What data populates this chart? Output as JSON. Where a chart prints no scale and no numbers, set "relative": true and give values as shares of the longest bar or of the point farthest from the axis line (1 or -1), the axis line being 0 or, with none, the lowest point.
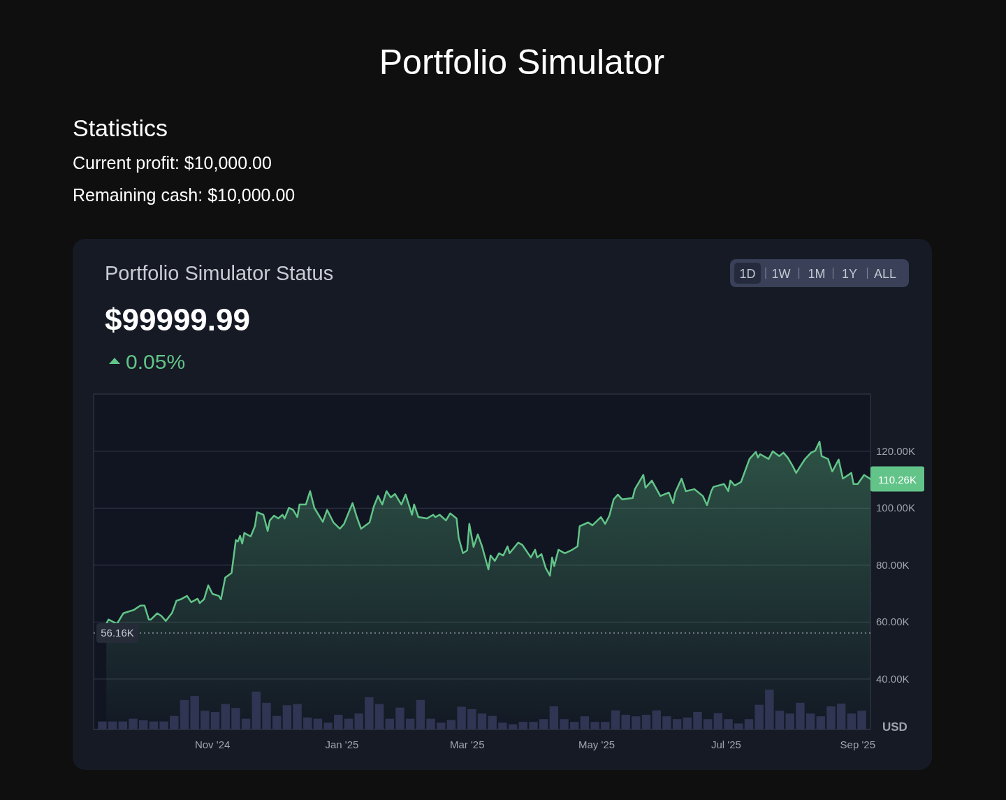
{
  "chart_data": [
    {
      "type": "other",
      "title": "Portfolio Simulator",
      "subtitle": "Statistics",
      "annotations": [
        "Current profit: $10,000.00",
        "Remaining cash: $10,000.00"
      ]
    },
    {
      "type": "area",
      "title": "Portfolio Simulator Status",
      "subtitle": "$99999.99",
      "ylabel": "USD",
      "color": "#62c488",
      "grid": "y",
      "annotations": [
        "0.05%",
        "1D",
        "1W",
        "1M",
        "1Y",
        "ALL",
        {
          "text": "110.26K",
          "x": "2025-09-07",
          "y": 110260
        }
      ],
      "ref_lines": [
        {
          "axis": "y",
          "value": 56160,
          "label": "56.16K",
          "line_style": "dotted",
          "color": "#8a8f9c"
        }
      ],
      "xlim": [
        "2024-09-06",
        "2025-09-07"
      ],
      "xticks": [
        {
          "value": "2024-11-01",
          "label": "Nov '24"
        },
        {
          "value": "2025-01-01",
          "label": "Jan '25"
        },
        {
          "value": "2025-03-01",
          "label": "Mar '25"
        },
        {
          "value": "2025-05-01",
          "label": "May '25"
        },
        {
          "value": "2025-07-01",
          "label": "Jul '25"
        },
        {
          "value": "2025-09-01",
          "label": "Sep '25"
        }
      ],
      "ylim": [
        22300,
        140100
      ],
      "yticks": [
        {
          "value": 40000,
          "label": "40.00K"
        },
        {
          "value": 60000,
          "label": "60.00K"
        },
        {
          "value": 80000,
          "label": "80.00K"
        },
        {
          "value": 100000,
          "label": "100.00K"
        },
        {
          "value": 120000,
          "label": "120.00K"
        }
      ],
      "x": [
        "2024-09-12",
        "2024-09-13",
        "2024-09-17",
        "2024-09-20",
        "2024-09-22",
        "2024-09-25",
        "2024-09-28",
        "2024-09-30",
        "2024-10-02",
        "2024-10-03",
        "2024-10-06",
        "2024-10-08",
        "2024-10-10",
        "2024-10-13",
        "2024-10-15",
        "2024-10-17",
        "2024-10-20",
        "2024-10-22",
        "2024-10-25",
        "2024-10-26",
        "2024-10-28",
        "2024-10-30",
        "2024-11-01",
        "2024-11-04",
        "2024-11-05",
        "2024-11-07",
        "2024-11-10",
        "2024-11-12",
        "2024-11-13",
        "2024-11-14",
        "2024-11-15",
        "2024-11-16",
        "2024-11-19",
        "2024-11-21",
        "2024-11-22",
        "2024-11-25",
        "2024-11-27",
        "2024-11-28",
        "2024-11-30",
        "2024-12-02",
        "2024-12-04",
        "2024-12-05",
        "2024-12-07",
        "2024-12-09",
        "2024-12-11",
        "2024-12-12",
        "2024-12-15",
        "2024-12-17",
        "2024-12-19",
        "2024-12-23",
        "2024-12-25",
        "2024-12-28",
        "2024-12-31",
        "2025-01-02",
        "2025-01-04",
        "2025-01-06",
        "2025-01-08",
        "2025-01-10",
        "2025-01-14",
        "2025-01-16",
        "2025-01-18",
        "2025-01-20",
        "2025-01-22",
        "2025-01-24",
        "2025-01-26",
        "2025-01-29",
        "2025-01-31",
        "2025-02-03",
        "2025-02-04",
        "2025-02-06",
        "2025-02-10",
        "2025-02-13",
        "2025-02-14",
        "2025-02-16",
        "2025-02-19",
        "2025-02-21",
        "2025-02-24",
        "2025-02-25",
        "2025-02-27",
        "2025-03-01",
        "2025-03-02",
        "2025-03-04",
        "2025-03-06",
        "2025-03-08",
        "2025-03-11",
        "2025-03-12",
        "2025-03-14",
        "2025-03-16",
        "2025-03-18",
        "2025-03-20",
        "2025-03-21",
        "2025-03-25",
        "2025-03-27",
        "2025-03-31",
        "2025-04-02",
        "2025-04-03",
        "2025-04-05",
        "2025-04-07",
        "2025-04-09",
        "2025-04-10",
        "2025-04-11",
        "2025-04-13",
        "2025-04-16",
        "2025-04-19",
        "2025-04-22",
        "2025-04-23",
        "2025-04-27",
        "2025-04-29",
        "2025-05-03",
        "2025-05-05",
        "2025-05-07",
        "2025-05-09",
        "2025-05-11",
        "2025-05-13",
        "2025-05-18",
        "2025-05-19",
        "2025-05-23",
        "2025-05-24",
        "2025-05-27",
        "2025-05-31",
        "2025-06-04",
        "2025-06-06",
        "2025-06-07",
        "2025-06-10",
        "2025-06-12",
        "2025-06-16",
        "2025-06-20",
        "2025-06-22",
        "2025-06-24",
        "2025-06-25",
        "2025-06-30",
        "2025-07-02",
        "2025-07-03",
        "2025-07-05",
        "2025-07-08",
        "2025-07-09",
        "2025-07-12",
        "2025-07-15",
        "2025-07-16",
        "2025-07-17",
        "2025-07-21",
        "2025-07-23",
        "2025-07-26",
        "2025-07-28",
        "2025-07-30",
        "2025-08-01",
        "2025-08-03",
        "2025-08-05",
        "2025-08-07",
        "2025-08-10",
        "2025-08-12",
        "2025-08-14",
        "2025-08-15",
        "2025-08-18",
        "2025-08-20",
        "2025-08-23",
        "2025-08-25",
        "2025-08-29",
        "2025-08-30",
        "2025-09-01",
        "2025-09-04",
        "2025-09-07"
      ],
      "values": [
        59400,
        60900,
        59400,
        63100,
        63600,
        64300,
        65800,
        65800,
        60900,
        60900,
        63100,
        62100,
        60400,
        63300,
        67500,
        68000,
        69200,
        67000,
        68200,
        66700,
        68000,
        72900,
        69900,
        69200,
        68000,
        75600,
        77300,
        88800,
        88300,
        90300,
        87600,
        91300,
        90100,
        93700,
        98600,
        97700,
        92000,
        95700,
        97400,
        96400,
        97700,
        96400,
        100100,
        99400,
        96900,
        101300,
        101300,
        106000,
        100100,
        95200,
        99400,
        95000,
        92800,
        94500,
        98200,
        101800,
        96900,
        92800,
        95000,
        100600,
        104300,
        101300,
        106000,
        103800,
        105000,
        101300,
        104800,
        97700,
        101300,
        96900,
        96400,
        97700,
        96900,
        97700,
        95700,
        98200,
        96400,
        89600,
        84200,
        85200,
        94500,
        86400,
        90800,
        86600,
        78500,
        83400,
        81500,
        84200,
        83400,
        86600,
        84200,
        87900,
        87100,
        82700,
        85400,
        82700,
        83900,
        79000,
        76300,
        82700,
        79700,
        85400,
        84200,
        85200,
        86600,
        93700,
        95000,
        94000,
        96900,
        94500,
        97400,
        103100,
        104800,
        103100,
        103600,
        106700,
        111700,
        107200,
        109700,
        104300,
        105500,
        101800,
        105500,
        110400,
        106000,
        106700,
        104300,
        101100,
        106000,
        107500,
        108500,
        106000,
        109700,
        108000,
        109200,
        111200,
        117300,
        119800,
        117800,
        119000,
        117300,
        120000,
        118300,
        119500,
        117800,
        115300,
        112400,
        114800,
        117100,
        119500,
        120200,
        123400,
        118300,
        117300,
        112900,
        117100,
        110400,
        112400,
        108500,
        108500,
        111700,
        110260
      ]
    },
    {
      "type": "bar",
      "relative": true,
      "color": "#2f3552",
      "categories": [
        null,
        null,
        null,
        null,
        null,
        null,
        null,
        null,
        null,
        null,
        null,
        null,
        null,
        null,
        null,
        null,
        null,
        null,
        null,
        null,
        null,
        null,
        null,
        null,
        null,
        null,
        null,
        null,
        null,
        null,
        null,
        null,
        null,
        null,
        null,
        null,
        null,
        null,
        null,
        null,
        null,
        null,
        null,
        null,
        null,
        null,
        null,
        null,
        null,
        null,
        null,
        null,
        null,
        null,
        null,
        null,
        null,
        null,
        null,
        null,
        null,
        null,
        null,
        null,
        null,
        null,
        null,
        null,
        null,
        null,
        null,
        null,
        null,
        null,
        null
      ],
      "values": [
        0.2,
        0.2,
        0.2,
        0.27,
        0.23,
        0.2,
        0.2,
        0.34,
        0.74,
        0.84,
        0.47,
        0.44,
        0.64,
        0.54,
        0.27,
        0.95,
        0.67,
        0.34,
        0.61,
        0.64,
        0.3,
        0.27,
        0.17,
        0.37,
        0.27,
        0.4,
        0.81,
        0.64,
        0.27,
        0.55,
        0.27,
        0.74,
        0.27,
        0.17,
        0.24,
        0.57,
        0.51,
        0.4,
        0.34,
        0.17,
        0.13,
        0.19,
        0.19,
        0.26,
        0.58,
        0.26,
        0.19,
        0.33,
        0.19,
        0.19,
        0.48,
        0.37,
        0.33,
        0.37,
        0.48,
        0.33,
        0.26,
        0.3,
        0.44,
        0.26,
        0.41,
        0.26,
        0.15,
        0.26,
        0.62,
        1,
        0.47,
        0.4,
        0.67,
        0.4,
        0.33,
        0.58,
        0.65,
        0.4,
        0.47
      ]
    }
  ]
}
